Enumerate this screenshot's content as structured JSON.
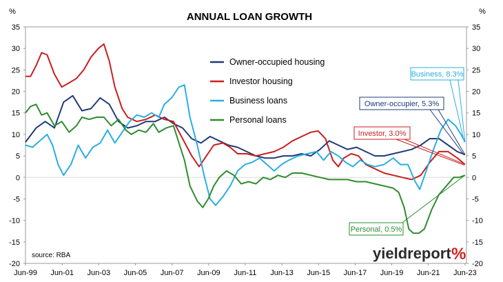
{
  "chart_data": {
    "type": "line",
    "title": "ANNUAL LOAN GROWTH",
    "ylabel_left": "%",
    "ylabel_right": "%",
    "ylim": [
      -20,
      35
    ],
    "yticks": [
      35,
      30,
      25,
      20,
      15,
      10,
      5,
      0,
      -5,
      -10,
      -15,
      -20
    ],
    "xlim": [
      1999.42,
      2023.5
    ],
    "xticks": [
      {
        "x": 1999.42,
        "label": "Jun-99"
      },
      {
        "x": 2001.42,
        "label": "Jun-01"
      },
      {
        "x": 2003.42,
        "label": "Jun-03"
      },
      {
        "x": 2005.42,
        "label": "Jun-05"
      },
      {
        "x": 2007.42,
        "label": "Jun-07"
      },
      {
        "x": 2009.42,
        "label": "Jun-09"
      },
      {
        "x": 2011.42,
        "label": "Jun-11"
      },
      {
        "x": 2013.42,
        "label": "Jun-13"
      },
      {
        "x": 2015.42,
        "label": "Jun-15"
      },
      {
        "x": 2017.42,
        "label": "Jun-17"
      },
      {
        "x": 2019.42,
        "label": "Jun-19"
      },
      {
        "x": 2021.42,
        "label": "Jun-21"
      },
      {
        "x": 2023.42,
        "label": "Jun-23"
      }
    ],
    "grid": false,
    "legend_position": "upper-middle",
    "source": "source: RBA",
    "series": [
      {
        "name": "Owner-occupied housing",
        "color": "#1f3a7a",
        "points": [
          [
            1999.42,
            8.2
          ],
          [
            2000.0,
            11.5
          ],
          [
            2000.5,
            13.0
          ],
          [
            2001.0,
            11.5
          ],
          [
            2001.5,
            17.5
          ],
          [
            2002.0,
            19.0
          ],
          [
            2002.5,
            15.5
          ],
          [
            2003.0,
            16.0
          ],
          [
            2003.5,
            18.5
          ],
          [
            2004.0,
            17.0
          ],
          [
            2004.5,
            13.0
          ],
          [
            2005.0,
            11.5
          ],
          [
            2005.5,
            12.0
          ],
          [
            2006.0,
            13.0
          ],
          [
            2006.5,
            13.0
          ],
          [
            2007.0,
            14.0
          ],
          [
            2007.5,
            12.5
          ],
          [
            2008.0,
            11.5
          ],
          [
            2008.5,
            9.0
          ],
          [
            2009.0,
            8.0
          ],
          [
            2009.5,
            9.5
          ],
          [
            2010.0,
            8.5
          ],
          [
            2010.5,
            7.5
          ],
          [
            2011.0,
            7.0
          ],
          [
            2011.5,
            6.0
          ],
          [
            2012.0,
            5.0
          ],
          [
            2012.5,
            4.5
          ],
          [
            2013.0,
            4.5
          ],
          [
            2013.5,
            5.0
          ],
          [
            2014.0,
            5.0
          ],
          [
            2014.5,
            5.5
          ],
          [
            2015.0,
            5.0
          ],
          [
            2015.5,
            6.5
          ],
          [
            2016.0,
            8.5
          ],
          [
            2016.5,
            7.5
          ],
          [
            2017.0,
            6.5
          ],
          [
            2017.5,
            7.0
          ],
          [
            2018.0,
            6.0
          ],
          [
            2018.5,
            5.0
          ],
          [
            2019.0,
            5.0
          ],
          [
            2019.5,
            5.5
          ],
          [
            2020.0,
            6.0
          ],
          [
            2020.5,
            6.5
          ],
          [
            2021.0,
            7.5
          ],
          [
            2021.5,
            9.0
          ],
          [
            2022.0,
            9.0
          ],
          [
            2022.5,
            7.5
          ],
          [
            2023.0,
            6.0
          ],
          [
            2023.42,
            5.3
          ]
        ]
      },
      {
        "name": "Investor housing",
        "color": "#c81e1e",
        "points": [
          [
            1999.42,
            23.5
          ],
          [
            1999.7,
            23.5
          ],
          [
            2000.0,
            26.0
          ],
          [
            2000.3,
            29.0
          ],
          [
            2000.6,
            28.5
          ],
          [
            2001.0,
            24.0
          ],
          [
            2001.4,
            21.0
          ],
          [
            2001.8,
            22.0
          ],
          [
            2002.2,
            23.0
          ],
          [
            2002.6,
            25.0
          ],
          [
            2003.0,
            28.0
          ],
          [
            2003.4,
            30.0
          ],
          [
            2003.7,
            31.0
          ],
          [
            2004.0,
            27.0
          ],
          [
            2004.3,
            21.0
          ],
          [
            2004.7,
            16.0
          ],
          [
            2005.0,
            14.0
          ],
          [
            2005.5,
            13.0
          ],
          [
            2006.0,
            13.5
          ],
          [
            2006.5,
            14.5
          ],
          [
            2007.0,
            13.5
          ],
          [
            2007.5,
            13.0
          ],
          [
            2008.0,
            9.0
          ],
          [
            2008.5,
            5.0
          ],
          [
            2008.9,
            2.5
          ],
          [
            2009.3,
            5.0
          ],
          [
            2009.7,
            7.5
          ],
          [
            2010.2,
            8.0
          ],
          [
            2010.6,
            7.0
          ],
          [
            2011.0,
            5.5
          ],
          [
            2011.5,
            5.5
          ],
          [
            2012.0,
            5.0
          ],
          [
            2012.5,
            5.5
          ],
          [
            2013.0,
            6.0
          ],
          [
            2013.5,
            7.0
          ],
          [
            2014.0,
            8.5
          ],
          [
            2014.5,
            9.5
          ],
          [
            2015.0,
            10.5
          ],
          [
            2015.4,
            10.8
          ],
          [
            2015.8,
            9.0
          ],
          [
            2016.2,
            4.0
          ],
          [
            2016.5,
            2.5
          ],
          [
            2016.8,
            4.5
          ],
          [
            2017.2,
            5.5
          ],
          [
            2017.6,
            5.0
          ],
          [
            2018.0,
            3.0
          ],
          [
            2018.5,
            2.0
          ],
          [
            2019.0,
            1.0
          ],
          [
            2019.5,
            0.5
          ],
          [
            2020.0,
            0.0
          ],
          [
            2020.5,
            -0.5
          ],
          [
            2021.0,
            0.5
          ],
          [
            2021.5,
            3.5
          ],
          [
            2022.0,
            6.0
          ],
          [
            2022.5,
            6.0
          ],
          [
            2023.0,
            4.5
          ],
          [
            2023.42,
            3.0
          ]
        ]
      },
      {
        "name": "Business loans",
        "color": "#29aee0",
        "points": [
          [
            1999.42,
            7.5
          ],
          [
            1999.8,
            7.0
          ],
          [
            2000.2,
            8.5
          ],
          [
            2000.6,
            10.0
          ],
          [
            2000.9,
            7.5
          ],
          [
            2001.2,
            3.0
          ],
          [
            2001.5,
            0.5
          ],
          [
            2001.9,
            3.0
          ],
          [
            2002.3,
            7.5
          ],
          [
            2002.7,
            4.5
          ],
          [
            2003.1,
            7.0
          ],
          [
            2003.5,
            8.0
          ],
          [
            2003.9,
            11.0
          ],
          [
            2004.3,
            8.0
          ],
          [
            2004.7,
            10.5
          ],
          [
            2005.1,
            13.0
          ],
          [
            2005.5,
            14.5
          ],
          [
            2005.9,
            14.0
          ],
          [
            2006.3,
            15.0
          ],
          [
            2006.7,
            14.0
          ],
          [
            2007.0,
            17.0
          ],
          [
            2007.4,
            18.5
          ],
          [
            2007.8,
            21.0
          ],
          [
            2008.1,
            21.5
          ],
          [
            2008.4,
            14.0
          ],
          [
            2008.8,
            7.5
          ],
          [
            2009.2,
            0.0
          ],
          [
            2009.5,
            -5.0
          ],
          [
            2009.8,
            -6.5
          ],
          [
            2010.2,
            -4.5
          ],
          [
            2010.6,
            -2.0
          ],
          [
            2011.0,
            1.5
          ],
          [
            2011.4,
            3.0
          ],
          [
            2011.8,
            3.5
          ],
          [
            2012.2,
            4.5
          ],
          [
            2012.6,
            3.0
          ],
          [
            2013.0,
            1.5
          ],
          [
            2013.4,
            3.0
          ],
          [
            2013.8,
            4.0
          ],
          [
            2014.3,
            5.0
          ],
          [
            2014.8,
            5.5
          ],
          [
            2015.3,
            6.0
          ],
          [
            2015.7,
            4.0
          ],
          [
            2016.1,
            6.0
          ],
          [
            2016.5,
            5.0
          ],
          [
            2016.9,
            3.5
          ],
          [
            2017.3,
            2.5
          ],
          [
            2017.7,
            4.0
          ],
          [
            2018.1,
            3.0
          ],
          [
            2018.5,
            2.5
          ],
          [
            2019.0,
            3.0
          ],
          [
            2019.5,
            4.5
          ],
          [
            2019.9,
            3.0
          ],
          [
            2020.3,
            3.0
          ],
          [
            2020.7,
            -1.0
          ],
          [
            2020.95,
            -2.8
          ],
          [
            2021.3,
            1.5
          ],
          [
            2021.7,
            6.5
          ],
          [
            2022.1,
            11.0
          ],
          [
            2022.5,
            13.5
          ],
          [
            2022.9,
            12.0
          ],
          [
            2023.2,
            10.0
          ],
          [
            2023.42,
            8.3
          ]
        ]
      },
      {
        "name": "Personal loans",
        "color": "#2e8b2e",
        "points": [
          [
            1999.42,
            15.0
          ],
          [
            1999.7,
            16.5
          ],
          [
            2000.0,
            17.0
          ],
          [
            2000.3,
            14.5
          ],
          [
            2000.6,
            15.0
          ],
          [
            2001.0,
            12.0
          ],
          [
            2001.4,
            13.0
          ],
          [
            2001.8,
            10.5
          ],
          [
            2002.2,
            12.0
          ],
          [
            2002.5,
            14.0
          ],
          [
            2002.9,
            13.5
          ],
          [
            2003.3,
            14.0
          ],
          [
            2003.7,
            14.0
          ],
          [
            2004.1,
            12.0
          ],
          [
            2004.5,
            13.5
          ],
          [
            2004.9,
            11.0
          ],
          [
            2005.2,
            10.0
          ],
          [
            2005.6,
            11.0
          ],
          [
            2006.0,
            10.5
          ],
          [
            2006.4,
            12.5
          ],
          [
            2006.7,
            10.5
          ],
          [
            2007.1,
            11.5
          ],
          [
            2007.5,
            12.0
          ],
          [
            2007.8,
            8.0
          ],
          [
            2008.1,
            4.0
          ],
          [
            2008.4,
            -2.0
          ],
          [
            2008.8,
            -5.5
          ],
          [
            2009.1,
            -7.0
          ],
          [
            2009.4,
            -5.0
          ],
          [
            2009.7,
            -2.0
          ],
          [
            2010.0,
            0.0
          ],
          [
            2010.4,
            1.5
          ],
          [
            2010.8,
            0.5
          ],
          [
            2011.2,
            -1.5
          ],
          [
            2011.6,
            -1.0
          ],
          [
            2012.0,
            -1.5
          ],
          [
            2012.4,
            0.0
          ],
          [
            2012.8,
            -0.5
          ],
          [
            2013.2,
            0.5
          ],
          [
            2013.6,
            0.0
          ],
          [
            2014.0,
            1.0
          ],
          [
            2014.5,
            1.0
          ],
          [
            2015.0,
            0.5
          ],
          [
            2015.5,
            0.0
          ],
          [
            2016.0,
            -0.5
          ],
          [
            2016.5,
            -0.5
          ],
          [
            2017.0,
            -0.5
          ],
          [
            2017.5,
            -1.0
          ],
          [
            2018.0,
            -1.0
          ],
          [
            2018.5,
            -1.5
          ],
          [
            2019.0,
            -2.0
          ],
          [
            2019.5,
            -2.5
          ],
          [
            2019.8,
            -3.5
          ],
          [
            2020.1,
            -7.0
          ],
          [
            2020.35,
            -12.0
          ],
          [
            2020.6,
            -13.0
          ],
          [
            2020.9,
            -13.0
          ],
          [
            2021.2,
            -12.0
          ],
          [
            2021.6,
            -7.5
          ],
          [
            2022.0,
            -4.0
          ],
          [
            2022.4,
            -2.0
          ],
          [
            2022.8,
            0.0
          ],
          [
            2023.1,
            0.0
          ],
          [
            2023.42,
            0.5
          ]
        ]
      }
    ],
    "annotations": [
      {
        "label": "Business, 8.3%",
        "series_index": 2,
        "color": "#29aee0"
      },
      {
        "label": "Owner-occupier, 5.3%",
        "series_index": 0,
        "color": "#1f3a7a"
      },
      {
        "label": "Investor, 3.0%",
        "series_index": 1,
        "color": "#c81e1e"
      },
      {
        "label": "Personal, 0.5%",
        "series_index": 3,
        "color": "#2e8b2e"
      }
    ]
  },
  "logo": {
    "main": "yieldreport",
    "pct": "%"
  }
}
